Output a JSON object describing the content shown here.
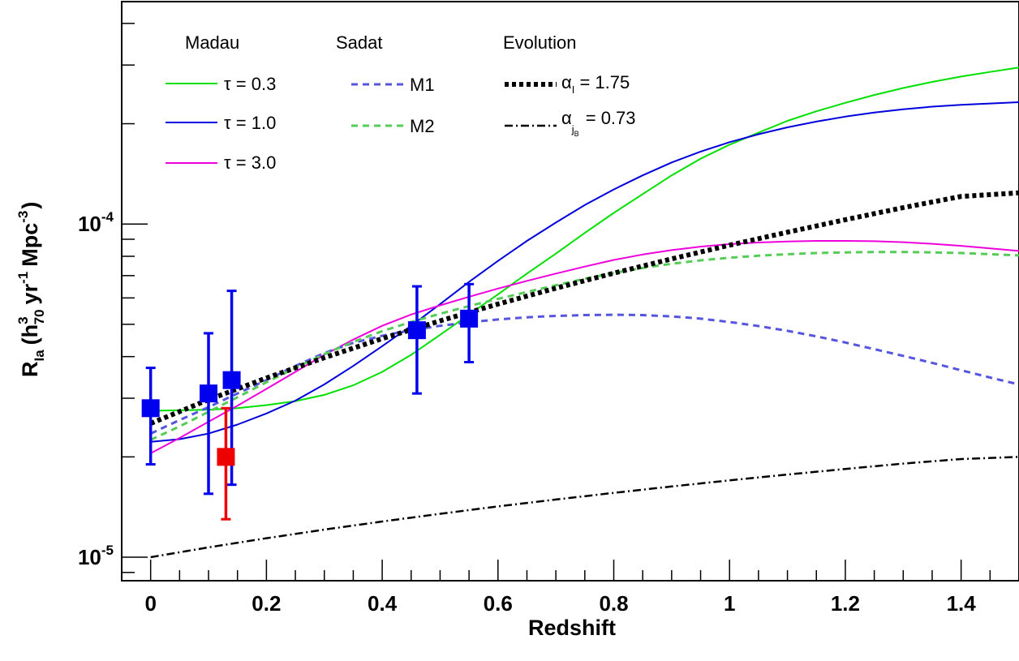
{
  "chart_data": {
    "type": "line",
    "xlabel": "Redshift",
    "ylabel": {
      "main": "R",
      "main_sub": "Ia",
      "open": "(h",
      "h_sup": "3",
      "h_sub": "70",
      "yr": "yr",
      "yr_sup": "-1",
      "mpc": "Mpc",
      "mpc_sup": "-3",
      "close": ")"
    },
    "xlim": [
      -0.05,
      1.5
    ],
    "ylim": [
      8.5e-06,
      0.000465
    ],
    "yscale": "log",
    "grid": false,
    "x_ticks": [
      {
        "value": 0,
        "label": "0"
      },
      {
        "value": 0.2,
        "label": "0.2"
      },
      {
        "value": 0.4,
        "label": "0.4"
      },
      {
        "value": 0.6,
        "label": "0.6"
      },
      {
        "value": 0.8,
        "label": "0.8"
      },
      {
        "value": 1.0,
        "label": "1"
      },
      {
        "value": 1.2,
        "label": "1.2"
      },
      {
        "value": 1.4,
        "label": "1.4"
      }
    ],
    "y_ticks": [
      {
        "value": 1e-05,
        "base": "10",
        "exp": "-5"
      },
      {
        "value": 0.0001,
        "base": "10",
        "exp": "-4"
      }
    ],
    "legend": {
      "placement": "top-left",
      "groups": [
        {
          "title": "Madau",
          "entries": [
            {
              "text": "τ = 0.3",
              "series": "madau_03"
            },
            {
              "text": "τ = 1.0",
              "series": "madau_10"
            },
            {
              "text": "τ = 3.0",
              "series": "madau_30"
            }
          ]
        },
        {
          "title": "Sadat",
          "entries": [
            {
              "text": "M1",
              "series": "sadat_m1"
            },
            {
              "text": "M2",
              "series": "sadat_m2"
            }
          ]
        },
        {
          "title": "Evolution",
          "entries": [
            {
              "text": "α",
              "sub": "I",
              "rest": " = 1.75",
              "series": "evo_I"
            },
            {
              "text": "α",
              "sub": "j",
              "subsub": "B",
              "rest": " = 0.73",
              "series": "evo_jB"
            }
          ]
        }
      ]
    },
    "series": [
      {
        "id": "madau_03",
        "color": "#00e000",
        "dash": "",
        "width": 2,
        "x": [
          0,
          0.05,
          0.1,
          0.15,
          0.2,
          0.25,
          0.3,
          0.35,
          0.4,
          0.45,
          0.5,
          0.55,
          0.6,
          0.65,
          0.7,
          0.75,
          0.8,
          0.85,
          0.9,
          0.95,
          1.0,
          1.05,
          1.1,
          1.15,
          1.2,
          1.25,
          1.3,
          1.35,
          1.4,
          1.45,
          1.5
        ],
        "y": [
          2.75e-05,
          2.76e-05,
          2.77e-05,
          2.8e-05,
          2.86e-05,
          2.94e-05,
          3.07e-05,
          3.28e-05,
          3.6e-05,
          4.05e-05,
          4.65e-05,
          5.35e-05,
          6.15e-05,
          7.1e-05,
          8.15e-05,
          9.4e-05,
          0.000108,
          0.000123,
          0.00014,
          0.000157,
          0.000173,
          0.000188,
          0.000204,
          0.000218,
          0.000231,
          0.000244,
          0.000256,
          0.000267,
          0.000277,
          0.000286,
          0.000295
        ]
      },
      {
        "id": "madau_10",
        "color": "#0000dd",
        "dash": "",
        "width": 2,
        "x": [
          0,
          0.05,
          0.1,
          0.15,
          0.2,
          0.25,
          0.3,
          0.35,
          0.4,
          0.45,
          0.5,
          0.55,
          0.6,
          0.65,
          0.7,
          0.75,
          0.8,
          0.85,
          0.9,
          0.95,
          1.0,
          1.05,
          1.1,
          1.15,
          1.2,
          1.25,
          1.3,
          1.35,
          1.4,
          1.45,
          1.5
        ],
        "y": [
          2.22e-05,
          2.26e-05,
          2.35e-05,
          2.5e-05,
          2.7e-05,
          2.95e-05,
          3.3e-05,
          3.75e-05,
          4.3e-05,
          4.95e-05,
          5.75e-05,
          6.7e-05,
          7.75e-05,
          8.9e-05,
          0.000101,
          0.000114,
          0.000127,
          0.00014,
          0.000153,
          0.000165,
          0.000176,
          0.000186,
          0.000195,
          0.000203,
          0.00021,
          0.000216,
          0.000221,
          0.000225,
          0.000228,
          0.00023,
          0.000232
        ]
      },
      {
        "id": "madau_30",
        "color": "#ee00dd",
        "dash": "",
        "width": 2,
        "x": [
          0,
          0.05,
          0.1,
          0.15,
          0.2,
          0.25,
          0.3,
          0.35,
          0.4,
          0.45,
          0.5,
          0.55,
          0.6,
          0.65,
          0.7,
          0.75,
          0.8,
          0.85,
          0.9,
          0.95,
          1.0,
          1.05,
          1.1,
          1.15,
          1.2,
          1.25,
          1.3,
          1.35,
          1.4,
          1.45,
          1.5
        ],
        "y": [
          2.05e-05,
          2.28e-05,
          2.55e-05,
          2.85e-05,
          3.2e-05,
          3.6e-05,
          4.05e-05,
          4.5e-05,
          4.95e-05,
          5.35e-05,
          5.7e-05,
          6.05e-05,
          6.4e-05,
          6.75e-05,
          7.1e-05,
          7.45e-05,
          7.8e-05,
          8.1e-05,
          8.35e-05,
          8.55e-05,
          8.7e-05,
          8.8e-05,
          8.86e-05,
          8.9e-05,
          8.9e-05,
          8.88e-05,
          8.82e-05,
          8.72e-05,
          8.6e-05,
          8.45e-05,
          8.3e-05
        ]
      },
      {
        "id": "sadat_m1",
        "color": "#5555dd",
        "dash": "8 6",
        "width": 3,
        "x": [
          0,
          0.05,
          0.1,
          0.15,
          0.2,
          0.25,
          0.3,
          0.35,
          0.4,
          0.45,
          0.5,
          0.55,
          0.6,
          0.65,
          0.7,
          0.75,
          0.8,
          0.85,
          0.9,
          0.95,
          1.0,
          1.05,
          1.1,
          1.15,
          1.2,
          1.25,
          1.3,
          1.35,
          1.4,
          1.45,
          1.5
        ],
        "y": [
          2.35e-05,
          2.58e-05,
          2.82e-05,
          3.1e-05,
          3.4e-05,
          3.75e-05,
          4.1e-05,
          4.4e-05,
          4.62e-05,
          4.8e-05,
          4.95e-05,
          5.07e-05,
          5.17e-05,
          5.25e-05,
          5.3e-05,
          5.33e-05,
          5.34e-05,
          5.33e-05,
          5.28e-05,
          5.2e-05,
          5.08e-05,
          4.94e-05,
          4.78e-05,
          4.6e-05,
          4.41e-05,
          4.21e-05,
          4.02e-05,
          3.83e-05,
          3.64e-05,
          3.46e-05,
          3.3e-05
        ]
      },
      {
        "id": "sadat_m2",
        "color": "#55cc55",
        "dash": "8 6",
        "width": 3,
        "x": [
          0,
          0.05,
          0.1,
          0.15,
          0.2,
          0.25,
          0.3,
          0.35,
          0.4,
          0.45,
          0.5,
          0.55,
          0.6,
          0.65,
          0.7,
          0.75,
          0.8,
          0.85,
          0.9,
          0.95,
          1.0,
          1.05,
          1.1,
          1.15,
          1.2,
          1.25,
          1.3,
          1.35,
          1.4,
          1.45,
          1.5
        ],
        "y": [
          2.25e-05,
          2.47e-05,
          2.73e-05,
          3.02e-05,
          3.35e-05,
          3.7e-05,
          4.07e-05,
          4.43e-05,
          4.77e-05,
          5.08e-05,
          5.38e-05,
          5.67e-05,
          5.96e-05,
          6.25e-05,
          6.55e-05,
          6.85e-05,
          7.13e-05,
          7.38e-05,
          7.6e-05,
          7.78e-05,
          7.92e-05,
          8.03e-05,
          8.12e-05,
          8.18e-05,
          8.22e-05,
          8.24e-05,
          8.24e-05,
          8.22e-05,
          8.18e-05,
          8.12e-05,
          8.05e-05
        ]
      },
      {
        "id": "evo_I",
        "color": "#000000",
        "dash": "5 4",
        "width": 6,
        "x": [
          0,
          0.1,
          0.2,
          0.3,
          0.4,
          0.5,
          0.6,
          0.7,
          0.8,
          0.9,
          1.0,
          1.1,
          1.2,
          1.3,
          1.4,
          1.5
        ],
        "y": [
          2.52e-05,
          2.97e-05,
          3.45e-05,
          3.97e-05,
          4.53e-05,
          5.12e-05,
          5.75e-05,
          6.42e-05,
          7.12e-05,
          7.86e-05,
          8.64e-05,
          9.45e-05,
          0.000103,
          0.000112,
          0.000121,
          0.000124
        ]
      },
      {
        "id": "evo_jB",
        "color": "#000000",
        "dash": "10 4 2 4",
        "width": 2.5,
        "x": [
          0,
          0.1,
          0.2,
          0.3,
          0.4,
          0.5,
          0.6,
          0.7,
          0.8,
          0.9,
          1.0,
          1.1,
          1.2,
          1.3,
          1.4,
          1.5
        ],
        "y": [
          1e-05,
          1.07e-05,
          1.14e-05,
          1.21e-05,
          1.28e-05,
          1.35e-05,
          1.42e-05,
          1.49e-05,
          1.56e-05,
          1.63e-05,
          1.7e-05,
          1.77e-05,
          1.84e-05,
          1.91e-05,
          1.97e-05,
          2e-05
        ]
      }
    ],
    "points": [
      {
        "x": 0.0,
        "y": 2.8e-05,
        "ylo": 1.9e-05,
        "yhi": 3.7e-05,
        "color": "#0000ee"
      },
      {
        "x": 0.1,
        "y": 3.1e-05,
        "ylo": 1.55e-05,
        "yhi": 4.7e-05,
        "color": "#0000ee"
      },
      {
        "x": 0.14,
        "y": 3.4e-05,
        "ylo": 1.65e-05,
        "yhi": 6.3e-05,
        "color": "#0000ee"
      },
      {
        "x": 0.13,
        "y": 2e-05,
        "ylo": 1.3e-05,
        "yhi": 2.8e-05,
        "color": "#ee0000"
      },
      {
        "x": 0.46,
        "y": 4.8e-05,
        "ylo": 3.1e-05,
        "yhi": 6.5e-05,
        "color": "#0000ee"
      },
      {
        "x": 0.55,
        "y": 5.2e-05,
        "ylo": 3.85e-05,
        "yhi": 6.6e-05,
        "color": "#0000ee"
      }
    ]
  }
}
